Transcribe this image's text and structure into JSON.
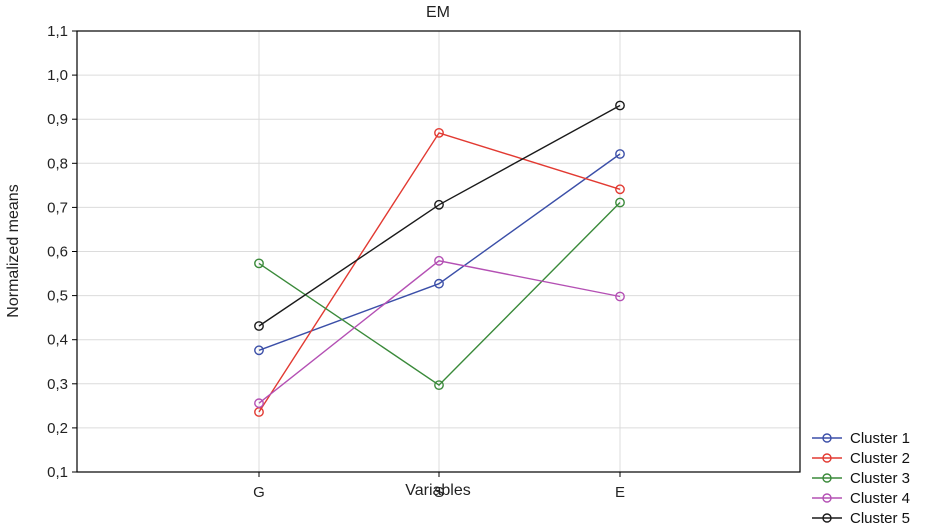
{
  "chart_data": {
    "type": "line",
    "title": "EM",
    "xlabel": "Variables",
    "ylabel": "Normalized means",
    "categories": [
      "G",
      "S",
      "E"
    ],
    "ylim": [
      0.1,
      1.1
    ],
    "yticks": [
      0.1,
      0.2,
      0.3,
      0.4,
      0.5,
      0.6,
      0.7,
      0.8,
      0.9,
      1.0,
      1.1
    ],
    "ytick_labels": [
      "0,1",
      "0,2",
      "0,3",
      "0,4",
      "0,5",
      "0,6",
      "0,7",
      "0,8",
      "0,9",
      "1,0",
      "1,1"
    ],
    "grid": true,
    "legend_position": "bottom-right",
    "series": [
      {
        "name": "Cluster 1",
        "color": "#3b4fa8",
        "values": [
          0.376,
          0.527,
          0.821
        ]
      },
      {
        "name": "Cluster 2",
        "color": "#e23a32",
        "values": [
          0.236,
          0.869,
          0.741
        ]
      },
      {
        "name": "Cluster 3",
        "color": "#3a8a3a",
        "values": [
          0.573,
          0.297,
          0.711
        ]
      },
      {
        "name": "Cluster 4",
        "color": "#b450b4",
        "values": [
          0.256,
          0.579,
          0.498
        ]
      },
      {
        "name": "Cluster 5",
        "color": "#1a1a1a",
        "values": [
          0.431,
          0.706,
          0.931
        ]
      }
    ]
  }
}
